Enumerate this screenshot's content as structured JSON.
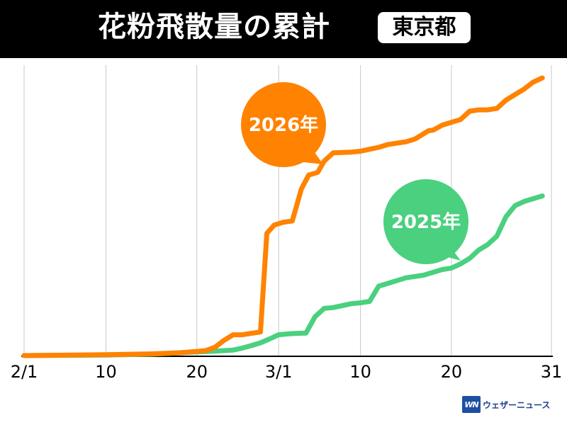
{
  "header": {
    "title": "花粉飛散量の累計",
    "region_badge": "東京都"
  },
  "logo": {
    "mark": "WN",
    "text": "ウェザーニュース"
  },
  "colors": {
    "header_bg": "#000000",
    "series_2026": "#ff8200",
    "series_2025": "#4ad07e",
    "grid": "#c8c8c8",
    "axis": "#000000",
    "logo_blue": "#1f4fa3"
  },
  "chart_data": {
    "type": "line",
    "title": "花粉飛散量の累計",
    "subtitle": "東京都",
    "xlabel": "",
    "ylabel": "",
    "x_tick_labels": [
      "2/1",
      "10",
      "20",
      "3/1",
      "10",
      "20",
      "31"
    ],
    "x_tick_days": [
      1,
      10,
      20,
      29,
      38,
      48,
      59
    ],
    "xlim": [
      1,
      59
    ],
    "ylim": [
      0,
      100
    ],
    "y_axis_labeled": false,
    "grid": "vertical",
    "legend": "callout bubbles",
    "series": [
      {
        "name": "2026年",
        "color": "#ff8200",
        "points": [
          [
            1,
            0
          ],
          [
            10,
            0.3
          ],
          [
            15,
            0.6
          ],
          [
            18,
            1
          ],
          [
            20,
            1.5
          ],
          [
            21,
            1.8
          ],
          [
            22,
            3
          ],
          [
            23,
            5.5
          ],
          [
            24,
            7.5
          ],
          [
            25,
            7.5
          ],
          [
            26,
            8
          ],
          [
            27,
            8.5
          ],
          [
            27.7,
            44
          ],
          [
            28.5,
            47
          ],
          [
            29.5,
            48
          ],
          [
            30.5,
            48.5
          ],
          [
            31.5,
            60
          ],
          [
            32.3,
            65
          ],
          [
            33.3,
            66
          ],
          [
            34,
            70
          ],
          [
            35,
            73
          ],
          [
            37,
            73.3
          ],
          [
            38,
            73.6
          ],
          [
            39,
            74.3
          ],
          [
            40,
            75
          ],
          [
            41,
            76
          ],
          [
            42,
            76.5
          ],
          [
            43,
            77
          ],
          [
            44,
            78
          ],
          [
            45,
            80
          ],
          [
            45.5,
            81
          ],
          [
            46,
            81.2
          ],
          [
            47,
            83
          ],
          [
            48,
            84
          ],
          [
            49,
            85
          ],
          [
            50,
            88
          ],
          [
            51,
            88.5
          ],
          [
            52,
            88.5
          ],
          [
            53,
            89
          ],
          [
            54,
            92
          ],
          [
            55,
            94
          ],
          [
            56,
            96
          ],
          [
            57,
            98.5
          ],
          [
            58,
            100
          ]
        ]
      },
      {
        "name": "2025年",
        "color": "#4ad07e",
        "points": [
          [
            1,
            0
          ],
          [
            10,
            0.2
          ],
          [
            15,
            0.5
          ],
          [
            20,
            1.3
          ],
          [
            22,
            1.6
          ],
          [
            24,
            2
          ],
          [
            25,
            2.7
          ],
          [
            26,
            3.6
          ],
          [
            27,
            4.6
          ],
          [
            28,
            6
          ],
          [
            29,
            7.5
          ],
          [
            30,
            7.8
          ],
          [
            31,
            8
          ],
          [
            32,
            8.1
          ],
          [
            33,
            14
          ],
          [
            34,
            17
          ],
          [
            35,
            17.3
          ],
          [
            36,
            18
          ],
          [
            37,
            18.7
          ],
          [
            38,
            19
          ],
          [
            39,
            19.5
          ],
          [
            40,
            25
          ],
          [
            41,
            26
          ],
          [
            42,
            27
          ],
          [
            43,
            28
          ],
          [
            44,
            28.5
          ],
          [
            45,
            29
          ],
          [
            46,
            30
          ],
          [
            47,
            31
          ],
          [
            48,
            31.5
          ],
          [
            49,
            33
          ],
          [
            50,
            35
          ],
          [
            51,
            38
          ],
          [
            52,
            40
          ],
          [
            53,
            43
          ],
          [
            54,
            50
          ],
          [
            55,
            54
          ],
          [
            56,
            55.5
          ],
          [
            57,
            56.5
          ],
          [
            58,
            57.5
          ]
        ]
      }
    ],
    "callouts": [
      {
        "series": "2026年",
        "label": "2026年"
      },
      {
        "series": "2025年",
        "label": "2025年"
      }
    ]
  }
}
